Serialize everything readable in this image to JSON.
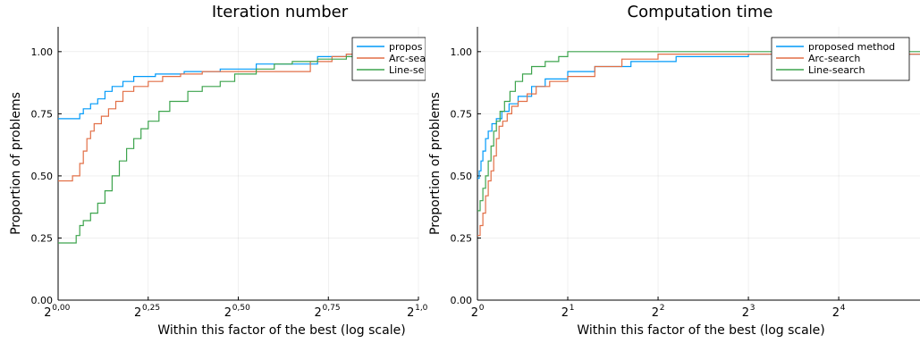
{
  "chart_data": [
    {
      "type": "line",
      "step": true,
      "title": "Iteration number",
      "xlabel": "Within this factor of the best (log scale)",
      "ylabel": "Proportion of problems",
      "x_scale": "log2",
      "xlim_log2": [
        0,
        1
      ],
      "ylim": [
        0,
        1.1
      ],
      "x_ticks_log2": [
        0,
        0.25,
        0.5,
        0.75,
        1
      ],
      "x_tick_labels": [
        {
          "base": "2",
          "exp": "0,00"
        },
        {
          "base": "2",
          "exp": "0,25"
        },
        {
          "base": "2",
          "exp": "0,50"
        },
        {
          "base": "2",
          "exp": "0,75"
        },
        {
          "base": "2",
          "exp": "1,0"
        }
      ],
      "y_ticks": [
        0,
        0.25,
        0.5,
        0.75,
        1
      ],
      "y_tick_labels": [
        "0.00",
        "0.25",
        "0.50",
        "0.75",
        "1.00"
      ],
      "grid": true,
      "legend_position": "top-right",
      "series": [
        {
          "name": "proposed method",
          "legend_text": "propos",
          "color": "#009af9",
          "x_log2": [
            0,
            0.06,
            0.07,
            0.09,
            0.11,
            0.13,
            0.15,
            0.18,
            0.21,
            0.27,
            0.35,
            0.45,
            0.55,
            0.72,
            0.8,
            1.0
          ],
          "y": [
            0.73,
            0.75,
            0.77,
            0.79,
            0.81,
            0.84,
            0.86,
            0.88,
            0.9,
            0.91,
            0.92,
            0.93,
            0.95,
            0.98,
            0.99,
            0.99
          ]
        },
        {
          "name": "Arc-search",
          "legend_text": "Arc-sear",
          "color": "#e26f46",
          "x_log2": [
            0,
            0.04,
            0.06,
            0.07,
            0.08,
            0.09,
            0.1,
            0.12,
            0.14,
            0.16,
            0.18,
            0.21,
            0.25,
            0.29,
            0.34,
            0.4,
            0.45,
            0.56,
            0.7,
            0.76,
            0.8,
            1.0
          ],
          "y": [
            0.48,
            0.5,
            0.55,
            0.6,
            0.65,
            0.68,
            0.71,
            0.74,
            0.77,
            0.8,
            0.84,
            0.86,
            0.88,
            0.9,
            0.91,
            0.92,
            0.92,
            0.92,
            0.96,
            0.98,
            0.99,
            0.99
          ]
        },
        {
          "name": "Line-search",
          "legend_text": "Line-se",
          "color": "#3da44d",
          "x_log2": [
            0,
            0.05,
            0.06,
            0.07,
            0.09,
            0.11,
            0.13,
            0.15,
            0.17,
            0.19,
            0.21,
            0.23,
            0.25,
            0.28,
            0.31,
            0.36,
            0.4,
            0.45,
            0.49,
            0.55,
            0.6,
            0.65,
            0.72,
            0.8,
            0.85,
            1.0
          ],
          "y": [
            0.23,
            0.26,
            0.3,
            0.32,
            0.35,
            0.39,
            0.44,
            0.5,
            0.56,
            0.61,
            0.65,
            0.69,
            0.72,
            0.76,
            0.8,
            0.84,
            0.86,
            0.88,
            0.91,
            0.93,
            0.95,
            0.96,
            0.97,
            0.98,
            0.99,
            0.99
          ]
        }
      ]
    },
    {
      "type": "line",
      "step": true,
      "title": "Computation time",
      "xlabel": "Within this factor of the best (log scale)",
      "ylabel": "Proportion of problems",
      "x_scale": "log2",
      "xlim_log2": [
        0,
        4.9
      ],
      "ylim": [
        0,
        1.1
      ],
      "x_ticks_log2": [
        0,
        1,
        2,
        3,
        4
      ],
      "x_tick_labels": [
        {
          "base": "2",
          "exp": "0"
        },
        {
          "base": "2",
          "exp": "1"
        },
        {
          "base": "2",
          "exp": "2"
        },
        {
          "base": "2",
          "exp": "3"
        },
        {
          "base": "2",
          "exp": "4"
        }
      ],
      "y_ticks": [
        0,
        0.25,
        0.5,
        0.75,
        1
      ],
      "y_tick_labels": [
        "0.00",
        "0.25",
        "0.50",
        "0.75",
        "1.00"
      ],
      "grid": true,
      "legend_position": "top-right",
      "series": [
        {
          "name": "proposed method",
          "legend_text": "proposed method",
          "color": "#009af9",
          "x_log2": [
            0,
            0.02,
            0.04,
            0.06,
            0.09,
            0.12,
            0.16,
            0.21,
            0.27,
            0.35,
            0.45,
            0.6,
            0.75,
            1.0,
            1.3,
            1.7,
            2.2,
            3.0,
            4.9
          ],
          "y": [
            0.49,
            0.52,
            0.56,
            0.6,
            0.65,
            0.68,
            0.71,
            0.73,
            0.76,
            0.79,
            0.82,
            0.86,
            0.89,
            0.92,
            0.94,
            0.96,
            0.98,
            0.99,
            0.99
          ]
        },
        {
          "name": "Arc-search",
          "legend_text": "Arc-search",
          "color": "#e26f46",
          "x_log2": [
            0,
            0.03,
            0.06,
            0.09,
            0.12,
            0.15,
            0.18,
            0.21,
            0.24,
            0.28,
            0.33,
            0.38,
            0.45,
            0.55,
            0.65,
            0.8,
            1.0,
            1.3,
            1.6,
            2.0,
            4.9
          ],
          "y": [
            0.26,
            0.3,
            0.35,
            0.42,
            0.48,
            0.52,
            0.58,
            0.65,
            0.7,
            0.72,
            0.75,
            0.78,
            0.8,
            0.83,
            0.86,
            0.88,
            0.9,
            0.94,
            0.97,
            0.99,
            0.99
          ]
        },
        {
          "name": "Line-search",
          "legend_text": "Line-search",
          "color": "#3da44d",
          "x_log2": [
            0,
            0.03,
            0.06,
            0.09,
            0.12,
            0.15,
            0.18,
            0.21,
            0.25,
            0.3,
            0.36,
            0.42,
            0.5,
            0.6,
            0.75,
            0.9,
            1.0,
            4.9
          ],
          "y": [
            0.36,
            0.4,
            0.45,
            0.5,
            0.56,
            0.62,
            0.68,
            0.72,
            0.76,
            0.8,
            0.84,
            0.88,
            0.91,
            0.94,
            0.96,
            0.98,
            1.0,
            1.0
          ]
        }
      ]
    }
  ]
}
